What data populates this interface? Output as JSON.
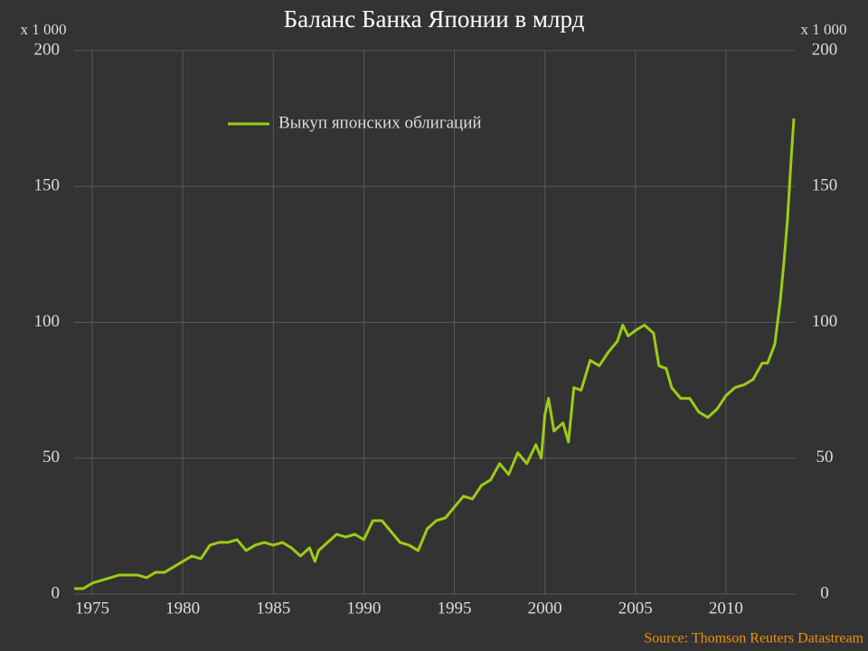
{
  "chart_data": {
    "type": "line",
    "title": "Баланс Банка Японии в млрд",
    "y_unit": "x 1 000",
    "y2_unit": "x 1 000",
    "source": "Source: Thomson Reuters Datastream",
    "x": [
      1974.0,
      1974.5,
      1975,
      1975.5,
      1976,
      1976.5,
      1977,
      1977.5,
      1978,
      1978.5,
      1979,
      1979.5,
      1980,
      1980.5,
      1981,
      1981.5,
      1982,
      1982.5,
      1983,
      1983.5,
      1984,
      1984.5,
      1985,
      1985.5,
      1986,
      1986.5,
      1987,
      1987.3,
      1987.5,
      1988,
      1988.5,
      1989,
      1989.5,
      1990,
      1990.5,
      1991,
      1991.5,
      1992,
      1992.5,
      1993,
      1993.5,
      1994,
      1994.5,
      1995,
      1995.5,
      1996,
      1996.5,
      1997,
      1997.5,
      1998,
      1998.5,
      1999,
      1999.5,
      1999.8,
      2000,
      2000.2,
      2000.5,
      2001,
      2001.3,
      2001.6,
      2002,
      2002.5,
      2003,
      2003.5,
      2004,
      2004.3,
      2004.6,
      2005,
      2005.5,
      2006,
      2006.3,
      2006.7,
      2007,
      2007.5,
      2008,
      2008.5,
      2009,
      2009.5,
      2010,
      2010.5,
      2011,
      2011.5,
      2012,
      2012.3,
      2012.7,
      2013,
      2013.2,
      2013.4,
      2013.6,
      2013.75
    ],
    "series": [
      {
        "name": "Выкуп японских облигаций",
        "color": "#9ccc16",
        "values": [
          2,
          2,
          4,
          5,
          6,
          7,
          7,
          7,
          6,
          8,
          8,
          10,
          12,
          14,
          13,
          18,
          19,
          19,
          20,
          16,
          18,
          19,
          18,
          19,
          17,
          14,
          17,
          12,
          16,
          19,
          22,
          21,
          22,
          20,
          27,
          27,
          23,
          19,
          18,
          16,
          24,
          27,
          28,
          32,
          36,
          35,
          40,
          42,
          48,
          44,
          52,
          48,
          55,
          50,
          66,
          72,
          60,
          63,
          56,
          76,
          75,
          86,
          84,
          89,
          93,
          99,
          95,
          97,
          99,
          96,
          84,
          83,
          76,
          72,
          72,
          67,
          65,
          68,
          73,
          76,
          77,
          79,
          85,
          85,
          92,
          108,
          122,
          138,
          160,
          175
        ]
      }
    ],
    "xlim": [
      1974,
      2013.8
    ],
    "xticks": [
      1975,
      1980,
      1985,
      1990,
      1995,
      2000,
      2005,
      2010
    ],
    "ylim": [
      0,
      200
    ],
    "yticks": [
      0,
      50,
      100,
      150,
      200
    ],
    "y2lim": [
      0,
      200
    ],
    "y2ticks": [
      0,
      50,
      100,
      150,
      200
    ],
    "grid": true,
    "legend": "top"
  }
}
